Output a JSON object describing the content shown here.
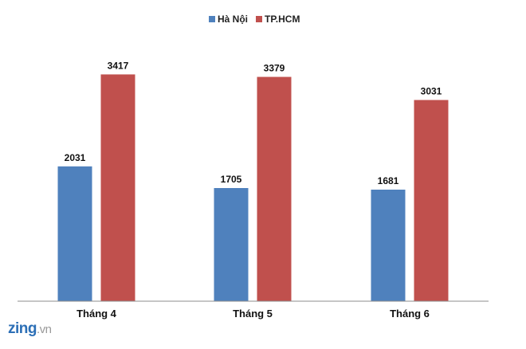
{
  "colors": {
    "hanoi": "#4f81bd",
    "hcm": "#c0504d",
    "axis": "#8c8c8c"
  },
  "watermark": {
    "brand": "zing",
    "suffix": ".vn"
  },
  "chart_data": {
    "type": "bar",
    "title": "",
    "xlabel": "",
    "ylabel": "",
    "categories": [
      "Tháng 4",
      "Tháng 5",
      "Tháng 6"
    ],
    "series": [
      {
        "name": "Hà Nội",
        "color": "#4f81bd",
        "values": [
          2031,
          1705,
          1681
        ]
      },
      {
        "name": "TP.HCM",
        "color": "#c0504d",
        "values": [
          3417,
          3379,
          3031
        ]
      }
    ],
    "ylim": [
      0,
      4000
    ],
    "grid": false,
    "legend": "top-center",
    "data_labels": true
  }
}
